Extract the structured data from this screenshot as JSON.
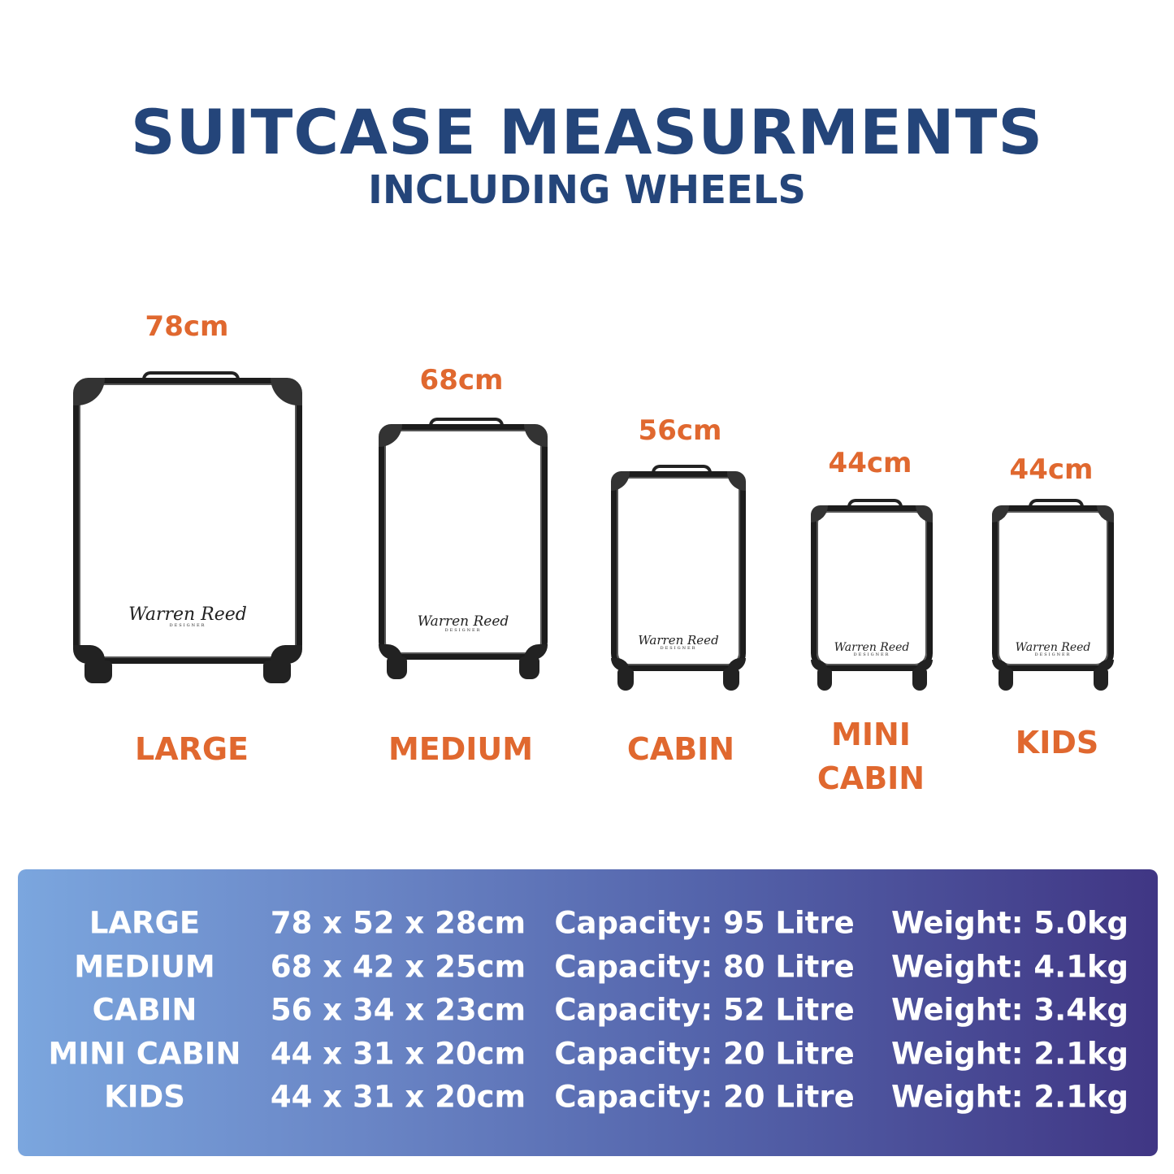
{
  "header": {
    "title": "SUITCASE MEASURMENTS",
    "subtitle": "INCLUDING WHEELS"
  },
  "colors": {
    "title": "#24457a",
    "accent": "#e0682f",
    "table_gradient_start": "#7ba6de",
    "table_gradient_end": "#403684"
  },
  "logo_text": "Warren Reed",
  "logo_subtext": "DESIGNER",
  "suitcases": [
    {
      "height_label": "78cm",
      "name": "LARGE"
    },
    {
      "height_label": "68cm",
      "name": "MEDIUM"
    },
    {
      "height_label": "56cm",
      "name": "CABIN"
    },
    {
      "height_label": "44cm",
      "name": "MINI\nCABIN"
    },
    {
      "height_label": "44cm",
      "name": "KIDS"
    }
  ],
  "table": {
    "rows": [
      {
        "name": "LARGE",
        "dimensions": "78 x 52 x 28cm",
        "capacity": "Capacity: 95 Litre",
        "weight": "Weight: 5.0kg"
      },
      {
        "name": "MEDIUM",
        "dimensions": "68 x 42 x 25cm",
        "capacity": "Capacity: 80 Litre",
        "weight": "Weight: 4.1kg"
      },
      {
        "name": "CABIN",
        "dimensions": "56 x 34 x 23cm",
        "capacity": "Capacity: 52 Litre",
        "weight": "Weight: 3.4kg"
      },
      {
        "name": "MINI CABIN",
        "dimensions": "44 x 31 x 20cm",
        "capacity": "Capacity: 20 Litre",
        "weight": "Weight: 2.1kg"
      },
      {
        "name": "KIDS",
        "dimensions": "44 x 31 x 20cm",
        "capacity": "Capacity: 20 Litre",
        "weight": "Weight: 2.1kg"
      }
    ]
  }
}
